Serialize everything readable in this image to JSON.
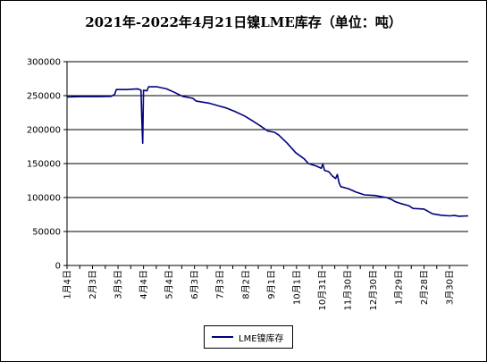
{
  "chart_data": {
    "type": "line",
    "title": "2021年-2022年4月21日镍LME库存（单位：吨）",
    "xlabel": "",
    "ylabel": "",
    "ylim": [
      0,
      300000
    ],
    "yticks": [
      0,
      50000,
      100000,
      150000,
      200000,
      250000,
      300000
    ],
    "grid": "horizontal",
    "legend_position": "bottom",
    "x_range": [
      "2021-01-04",
      "2022-04-21"
    ],
    "xtick_labels": [
      {
        "label": "1月4日",
        "date": "2021-01-04"
      },
      {
        "label": "2月3日",
        "date": "2021-02-03"
      },
      {
        "label": "3月5日",
        "date": "2021-03-05"
      },
      {
        "label": "4月4日",
        "date": "2021-04-04"
      },
      {
        "label": "5月4日",
        "date": "2021-05-04"
      },
      {
        "label": "6月3日",
        "date": "2021-06-03"
      },
      {
        "label": "7月3日",
        "date": "2021-07-03"
      },
      {
        "label": "8月2日",
        "date": "2021-08-02"
      },
      {
        "label": "9月1日",
        "date": "2021-09-01"
      },
      {
        "label": "10月1日",
        "date": "2021-10-01"
      },
      {
        "label": "10月31日",
        "date": "2021-10-31"
      },
      {
        "label": "11月30日",
        "date": "2021-11-30"
      },
      {
        "label": "12月30日",
        "date": "2021-12-30"
      },
      {
        "label": "1月29日",
        "date": "2022-01-29"
      },
      {
        "label": "2月28日",
        "date": "2022-02-28"
      },
      {
        "label": "3月30日",
        "date": "2022-03-30"
      }
    ],
    "series": [
      {
        "name": "LME镍库存",
        "color": "#000080",
        "points": [
          [
            "2021-01-04",
            248000
          ],
          [
            "2021-01-20",
            248500
          ],
          [
            "2021-02-10",
            248500
          ],
          [
            "2021-02-25",
            249000
          ],
          [
            "2021-03-01",
            252000
          ],
          [
            "2021-03-03",
            259000
          ],
          [
            "2021-03-15",
            259000
          ],
          [
            "2021-03-28",
            260000
          ],
          [
            "2021-04-01",
            258000
          ],
          [
            "2021-04-02",
            215000
          ],
          [
            "2021-04-03",
            180000
          ],
          [
            "2021-04-04",
            258000
          ],
          [
            "2021-04-08",
            257000
          ],
          [
            "2021-04-10",
            263000
          ],
          [
            "2021-04-20",
            263000
          ],
          [
            "2021-05-01",
            260000
          ],
          [
            "2021-05-10",
            255000
          ],
          [
            "2021-05-20",
            249000
          ],
          [
            "2021-06-01",
            246000
          ],
          [
            "2021-06-05",
            242000
          ],
          [
            "2021-06-20",
            239000
          ],
          [
            "2021-07-01",
            235000
          ],
          [
            "2021-07-10",
            232000
          ],
          [
            "2021-07-20",
            227000
          ],
          [
            "2021-08-01",
            220000
          ],
          [
            "2021-08-10",
            213000
          ],
          [
            "2021-08-20",
            205000
          ],
          [
            "2021-08-28",
            198000
          ],
          [
            "2021-09-05",
            196000
          ],
          [
            "2021-09-10",
            192000
          ],
          [
            "2021-09-20",
            180000
          ],
          [
            "2021-09-30",
            166000
          ],
          [
            "2021-10-10",
            157000
          ],
          [
            "2021-10-15",
            150000
          ],
          [
            "2021-10-25",
            146000
          ],
          [
            "2021-10-30",
            143000
          ],
          [
            "2021-11-01",
            149000
          ],
          [
            "2021-11-03",
            140000
          ],
          [
            "2021-11-08",
            138000
          ],
          [
            "2021-11-12",
            132000
          ],
          [
            "2021-11-16",
            128000
          ],
          [
            "2021-11-18",
            134000
          ],
          [
            "2021-11-20",
            122000
          ],
          [
            "2021-11-22",
            116000
          ],
          [
            "2021-12-01",
            113000
          ],
          [
            "2021-12-10",
            108000
          ],
          [
            "2021-12-20",
            104000
          ],
          [
            "2022-01-01",
            103000
          ],
          [
            "2022-01-15",
            100000
          ],
          [
            "2022-01-21",
            97000
          ],
          [
            "2022-01-25",
            94000
          ],
          [
            "2022-02-01",
            91000
          ],
          [
            "2022-02-10",
            88000
          ],
          [
            "2022-02-15",
            84000
          ],
          [
            "2022-02-28",
            83000
          ],
          [
            "2022-03-10",
            76000
          ],
          [
            "2022-03-20",
            74000
          ],
          [
            "2022-03-30",
            73000
          ],
          [
            "2022-04-05",
            73500
          ],
          [
            "2022-04-10",
            72500
          ],
          [
            "2022-04-21",
            73000
          ]
        ]
      }
    ]
  }
}
